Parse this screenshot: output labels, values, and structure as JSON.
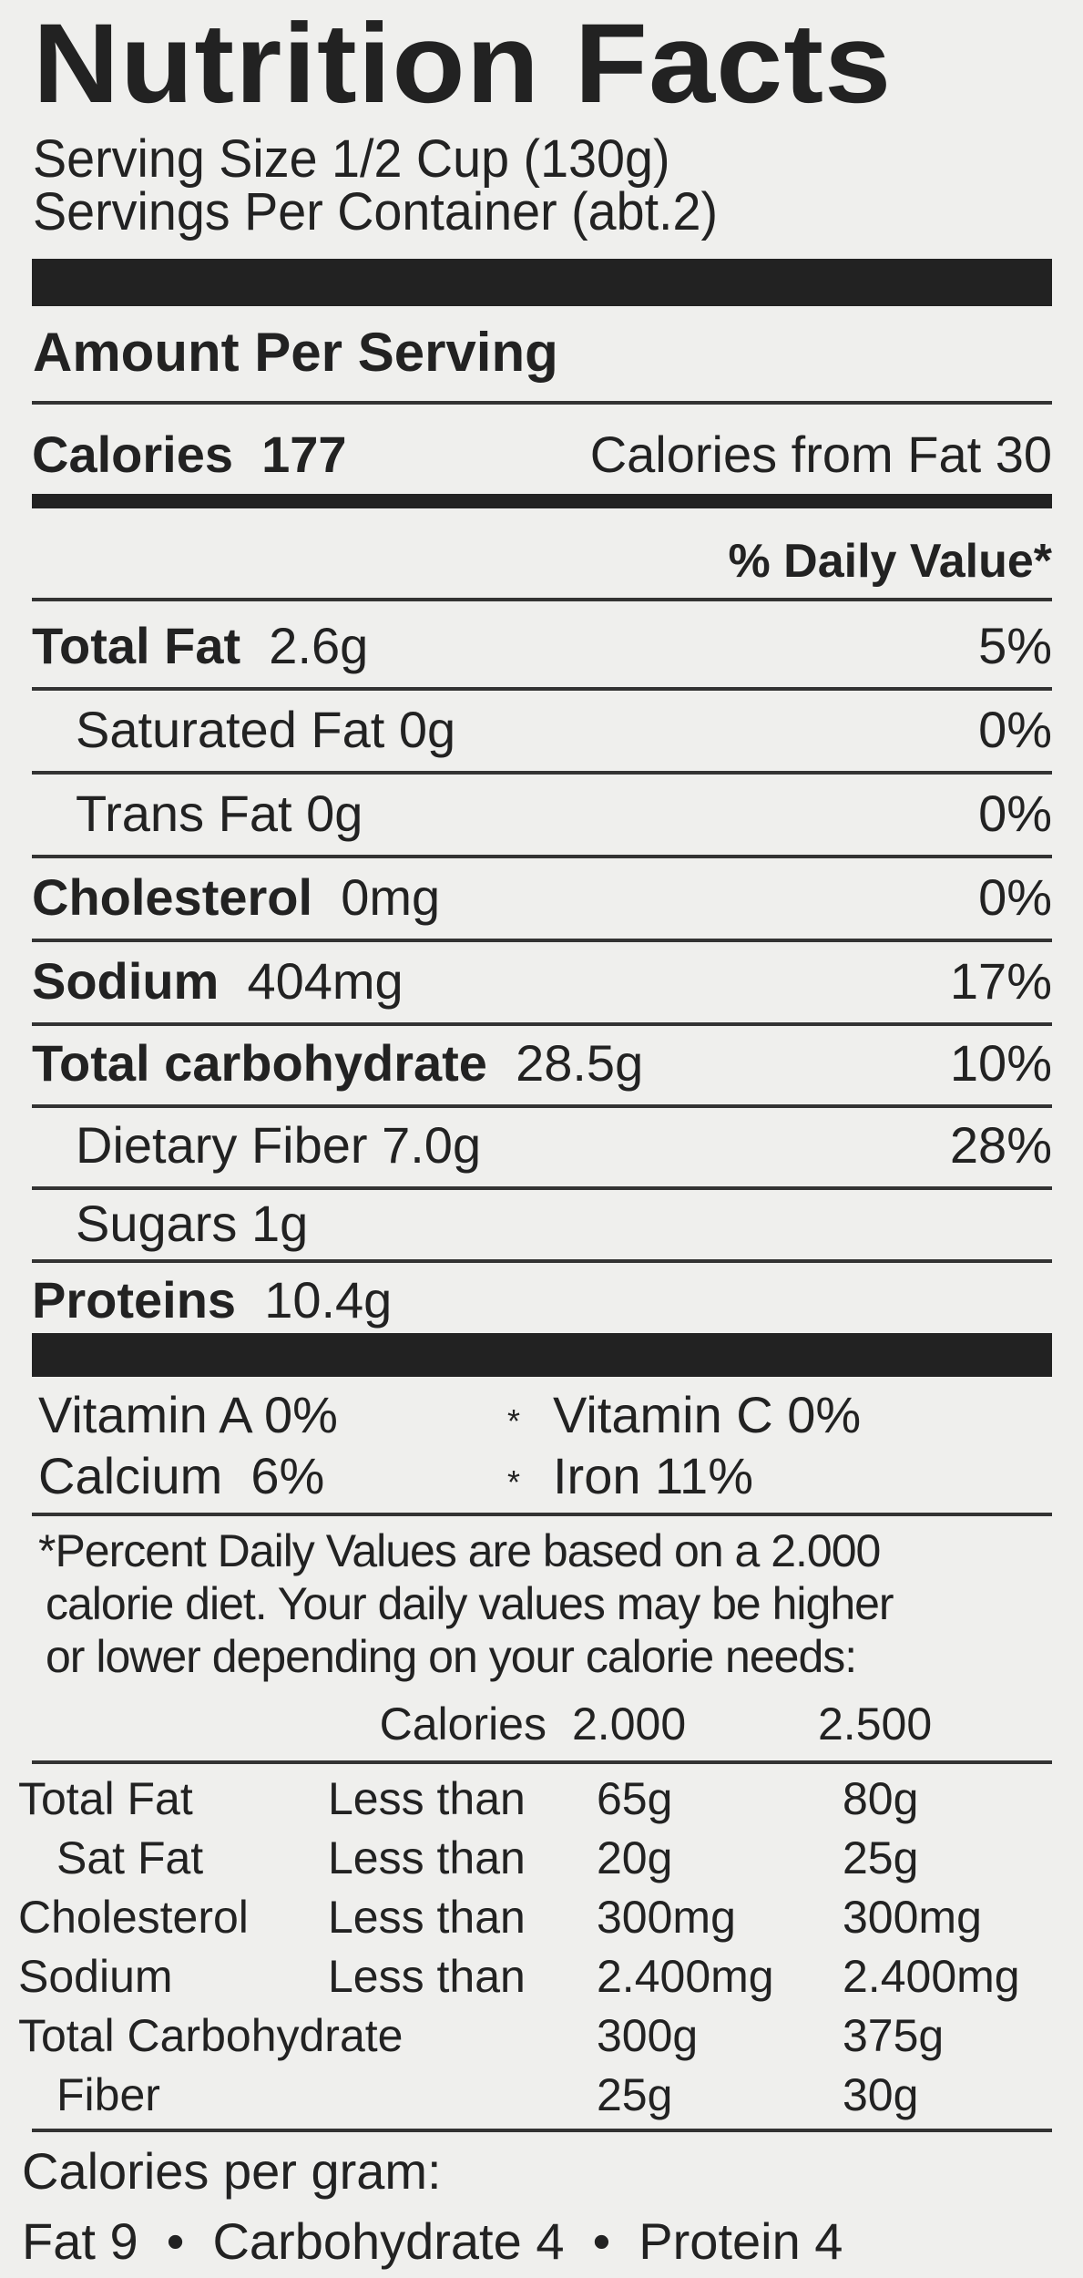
{
  "title": "Nutrition Facts",
  "serving_size": "Serving Size 1/2 Cup (130g)",
  "servings_per_container": "Servings Per Container (abt.2)",
  "amount_per_serving": "Amount Per Serving",
  "calories": {
    "label": "Calories",
    "value": "177",
    "from_fat": "Calories from Fat 30"
  },
  "daily_value_header": "% Daily Value*",
  "nutrients": [
    {
      "name": "Total Fat",
      "amount": "2.6g",
      "dv": "5%",
      "bold": true
    },
    {
      "name": "Saturated Fat",
      "amount": "0g",
      "dv": "0%",
      "bold": false
    },
    {
      "name": "Trans Fat",
      "amount": "0g",
      "dv": "0%",
      "bold": false
    },
    {
      "name": "Cholesterol",
      "amount": "0mg",
      "dv": "0%",
      "bold": true
    },
    {
      "name": "Sodium",
      "amount": "404mg",
      "dv": "17%",
      "bold": true
    },
    {
      "name": "Total carbohydrate",
      "amount": "28.5g",
      "dv": "10%",
      "bold": true
    },
    {
      "name": "Dietary Fiber",
      "amount": "7.0g",
      "dv": "28%",
      "bold": false
    },
    {
      "name": "Sugars",
      "amount": "1g",
      "dv": "",
      "bold": false
    },
    {
      "name": "Proteins",
      "amount": "10.4g",
      "dv": "",
      "bold": true
    }
  ],
  "vitamins": [
    {
      "label": "Vitamin A 0%"
    },
    {
      "label": "Vitamin C 0%"
    },
    {
      "label": "Calcium  6%"
    },
    {
      "label": "Iron 11%"
    }
  ],
  "separator": "*",
  "footnote": [
    "*Percent Daily Values are based on a 2.000",
    "calorie diet. Your daily values may be higher",
    "or lower depending on your calorie needs:"
  ],
  "reference_header": {
    "calories": "Calories",
    "col1": "2.000",
    "col2": "2.500"
  },
  "reference_rows": [
    [
      "Total Fat",
      "Less than",
      "65g",
      "80g"
    ],
    [
      "Sat Fat",
      "Less than",
      "20g",
      "25g"
    ],
    [
      "Cholesterol",
      "Less than",
      "300mg",
      "300mg"
    ],
    [
      "Sodium",
      "Less than",
      "2.400mg",
      "2.400mg"
    ],
    [
      "Total Carbohydrate",
      "",
      "300g",
      "375g"
    ],
    [
      "Fiber",
      "",
      "25g",
      "30g"
    ]
  ],
  "calories_per_gram": {
    "label": "Calories per gram:",
    "values": "Fat 9  •  Carbohydrate 4  •  Protein 4"
  }
}
